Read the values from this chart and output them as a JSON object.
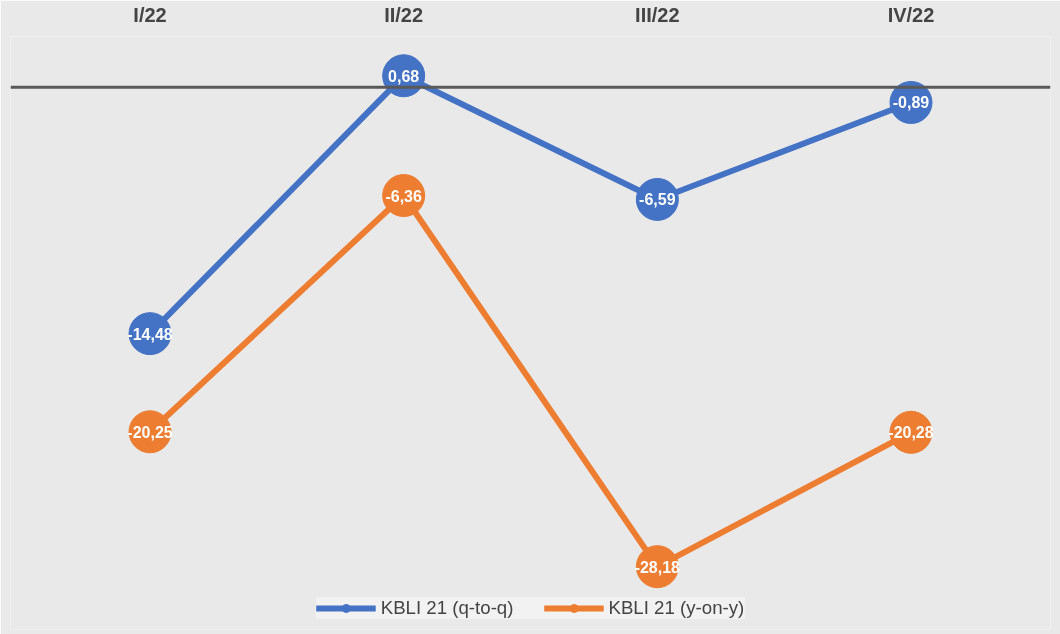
{
  "chart_data": {
    "type": "line",
    "categories": [
      "I/22",
      "II/22",
      "III/22",
      "IV/22"
    ],
    "series": [
      {
        "name": "KBLI 21 (q-to-q)",
        "color": "#4472c4",
        "values": [
          -14.48,
          0.68,
          -6.59,
          -0.89
        ],
        "value_labels": [
          "-14,48",
          "0,68",
          "-6,59",
          "-0,89"
        ]
      },
      {
        "name": "KBLI 21 (y-on-y)",
        "color": "#ed7d31",
        "values": [
          -20.25,
          -6.36,
          -28.18,
          -20.28
        ],
        "value_labels": [
          "-20,25",
          "-6,36",
          "-28,18",
          "-20,28"
        ]
      }
    ],
    "ref_lines": [
      {
        "axis": "y",
        "value": 0,
        "color": "#595959"
      }
    ],
    "marker": "circle",
    "line_style": "solid",
    "legend": "bottom",
    "tick_labels": "x"
  }
}
